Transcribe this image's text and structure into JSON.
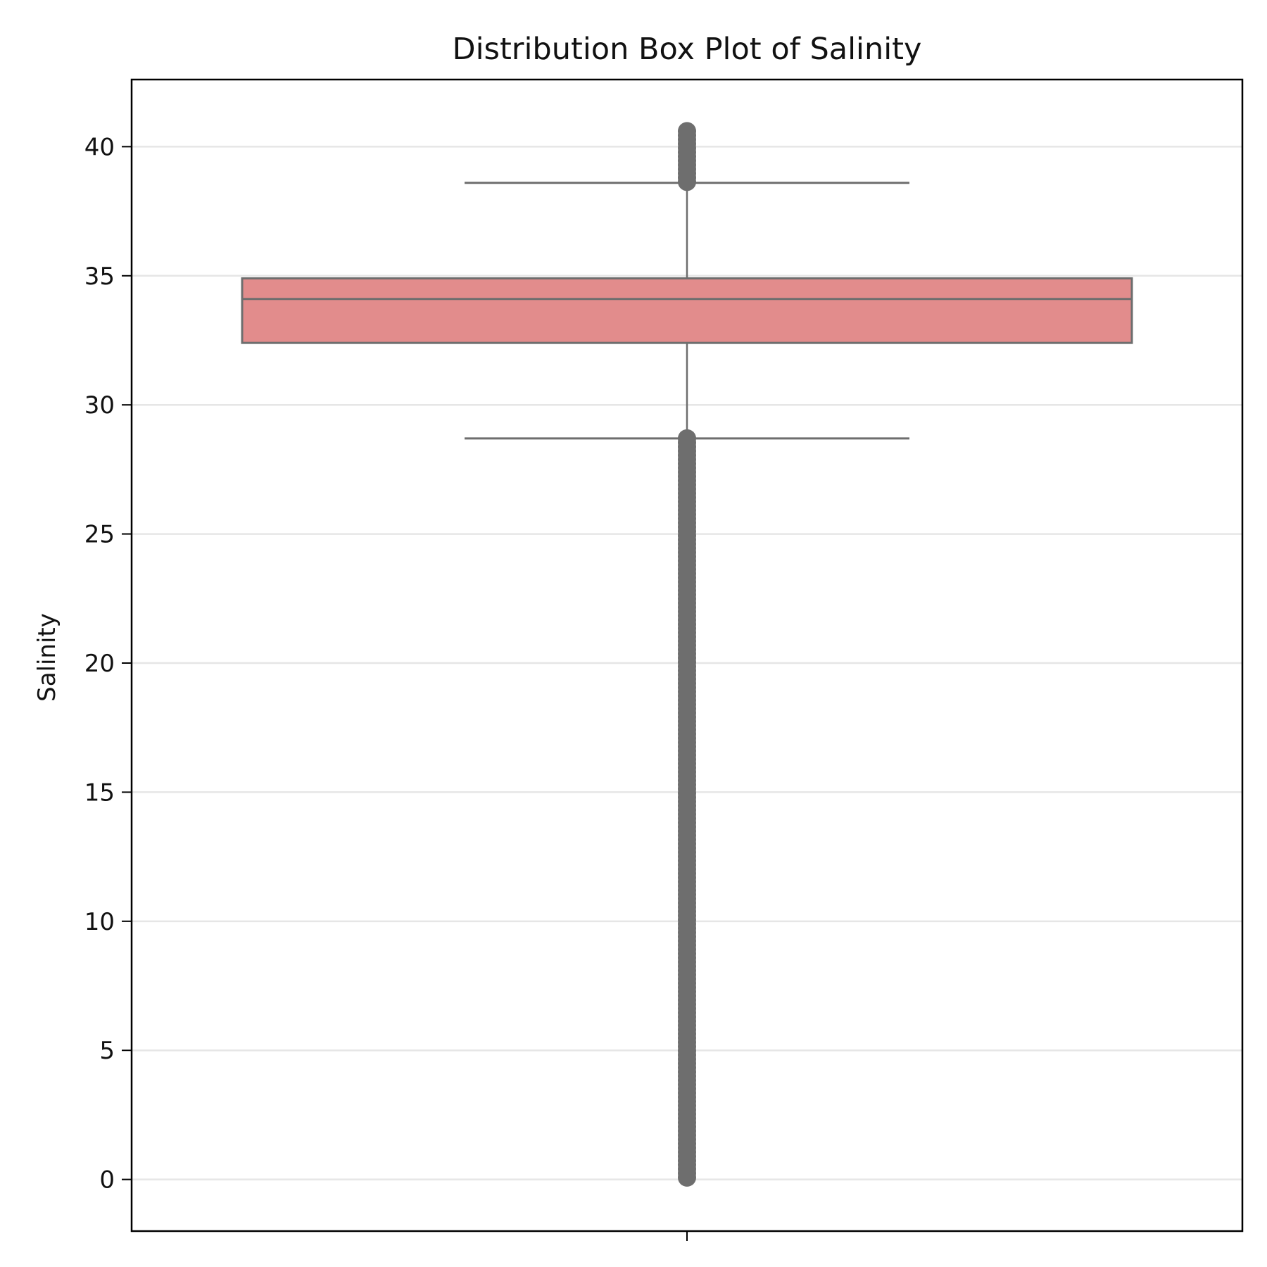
{
  "chart_data": {
    "type": "box",
    "title": "Distribution Box Plot of Salinity",
    "xlabel": "",
    "ylabel": "Salinity",
    "ylim": [
      -2.0,
      42.6
    ],
    "yticks": [
      0,
      5,
      10,
      15,
      20,
      25,
      30,
      35,
      40
    ],
    "ytick_labels": [
      "0",
      "5",
      "10",
      "15",
      "20",
      "25",
      "30",
      "35",
      "40"
    ],
    "grid": "horizontal",
    "legend": "none",
    "boxes": [
      {
        "q1": 32.4,
        "median": 34.1,
        "q3": 34.9,
        "whisker_low": 28.7,
        "whisker_high": 38.6,
        "outliers_low_range": [
          0.0,
          28.7
        ],
        "outliers_high_range": [
          38.5,
          40.6
        ]
      }
    ],
    "colors": {
      "box_fill": "#e28c8c",
      "box_edge": "#6e6e6e",
      "outlier": "#6e6e6e",
      "grid": "#e6e6e6",
      "axes": "#000000"
    }
  }
}
